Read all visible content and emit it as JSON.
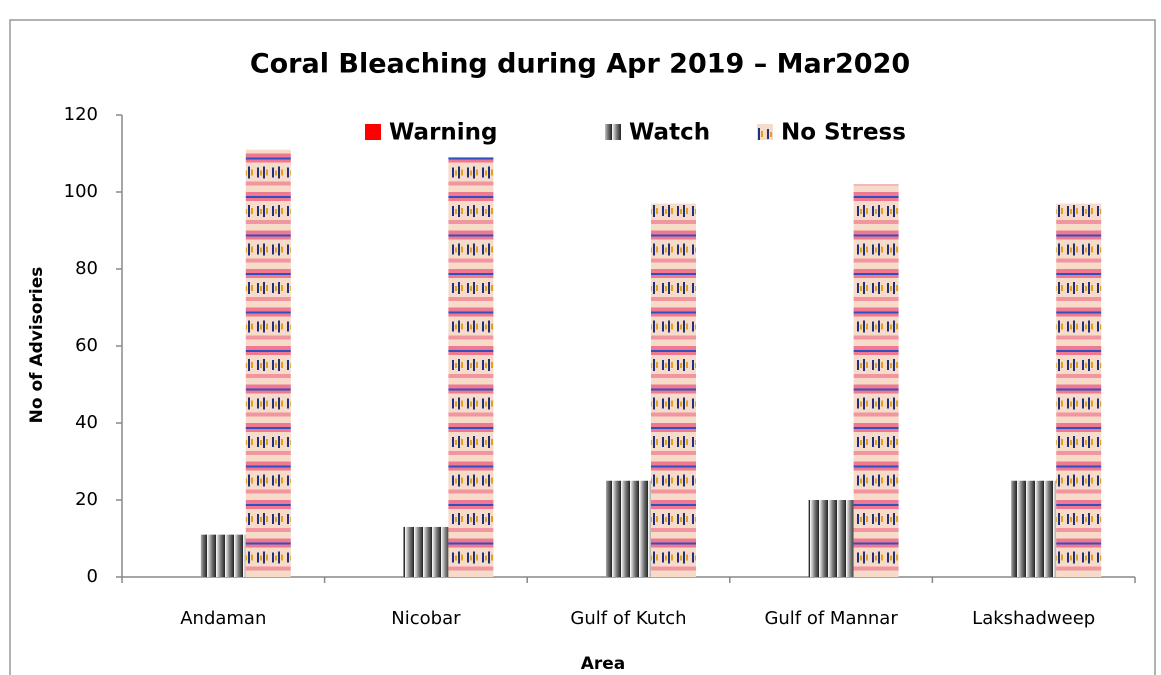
{
  "chart_data": {
    "type": "bar",
    "title": "Coral Bleaching during Apr 2019 – Mar2020",
    "x_label": "Area",
    "y_label": "No of Advisories",
    "categories": [
      "Andaman",
      "Nicobar",
      "Gulf of Kutch",
      "Gulf of Mannar",
      "Lakshadweep"
    ],
    "series": [
      {
        "name": "Warning",
        "color": "#ff0000",
        "values": [
          0,
          0,
          0,
          0,
          0
        ]
      },
      {
        "name": "Watch",
        "color": "#808080",
        "values": [
          11,
          13,
          25,
          20,
          25
        ]
      },
      {
        "name": "No Stress",
        "color": "#f07890",
        "values": [
          111,
          109,
          97,
          102,
          97
        ]
      }
    ],
    "ylim": [
      0,
      120
    ],
    "yticks": [
      0,
      20,
      40,
      60,
      80,
      100,
      120
    ],
    "legend": "top"
  }
}
